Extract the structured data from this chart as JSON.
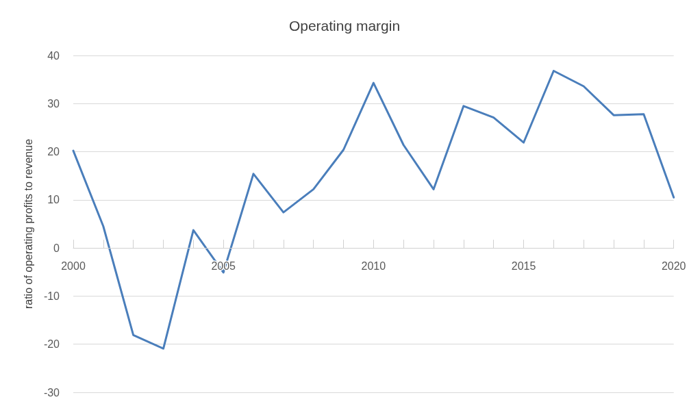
{
  "chart_data": {
    "type": "line",
    "title": "Operating margin",
    "ylabel": "ratio of operating profits to revenue",
    "x": [
      2000,
      2001,
      2002,
      2003,
      2004,
      2005,
      2006,
      2007,
      2008,
      2009,
      2010,
      2011,
      2012,
      2013,
      2014,
      2015,
      2016,
      2017,
      2018,
      2019,
      2020
    ],
    "series": [
      {
        "color": "#4a7ebb",
        "values": [
          20.2,
          4.5,
          -18.1,
          -20.9,
          3.7,
          -5.1,
          15.4,
          7.4,
          12.2,
          20.4,
          34.3,
          21.4,
          12.2,
          29.5,
          27.1,
          21.9,
          36.8,
          33.6,
          27.6,
          27.8,
          10.5
        ]
      }
    ],
    "xlim": [
      2000,
      2020
    ],
    "xticks": [
      2000,
      {
        "value": 2001,
        "label": null
      },
      {
        "value": 2002,
        "label": null
      },
      {
        "value": 2003,
        "label": null
      },
      {
        "value": 2004,
        "label": null
      },
      2005,
      {
        "value": 2006,
        "label": null
      },
      {
        "value": 2007,
        "label": null
      },
      {
        "value": 2008,
        "label": null
      },
      {
        "value": 2009,
        "label": null
      },
      2010,
      {
        "value": 2011,
        "label": null
      },
      {
        "value": 2012,
        "label": null
      },
      {
        "value": 2013,
        "label": null
      },
      {
        "value": 2014,
        "label": null
      },
      2015,
      {
        "value": 2016,
        "label": null
      },
      {
        "value": 2017,
        "label": null
      },
      {
        "value": 2018,
        "label": null
      },
      {
        "value": 2019,
        "label": null
      },
      2020
    ],
    "ylim": [
      -30,
      40
    ],
    "yticks": [
      -30,
      -20,
      -10,
      0,
      10,
      20,
      30,
      40
    ],
    "grid": "y",
    "marker": "none",
    "line_style": "solid"
  }
}
